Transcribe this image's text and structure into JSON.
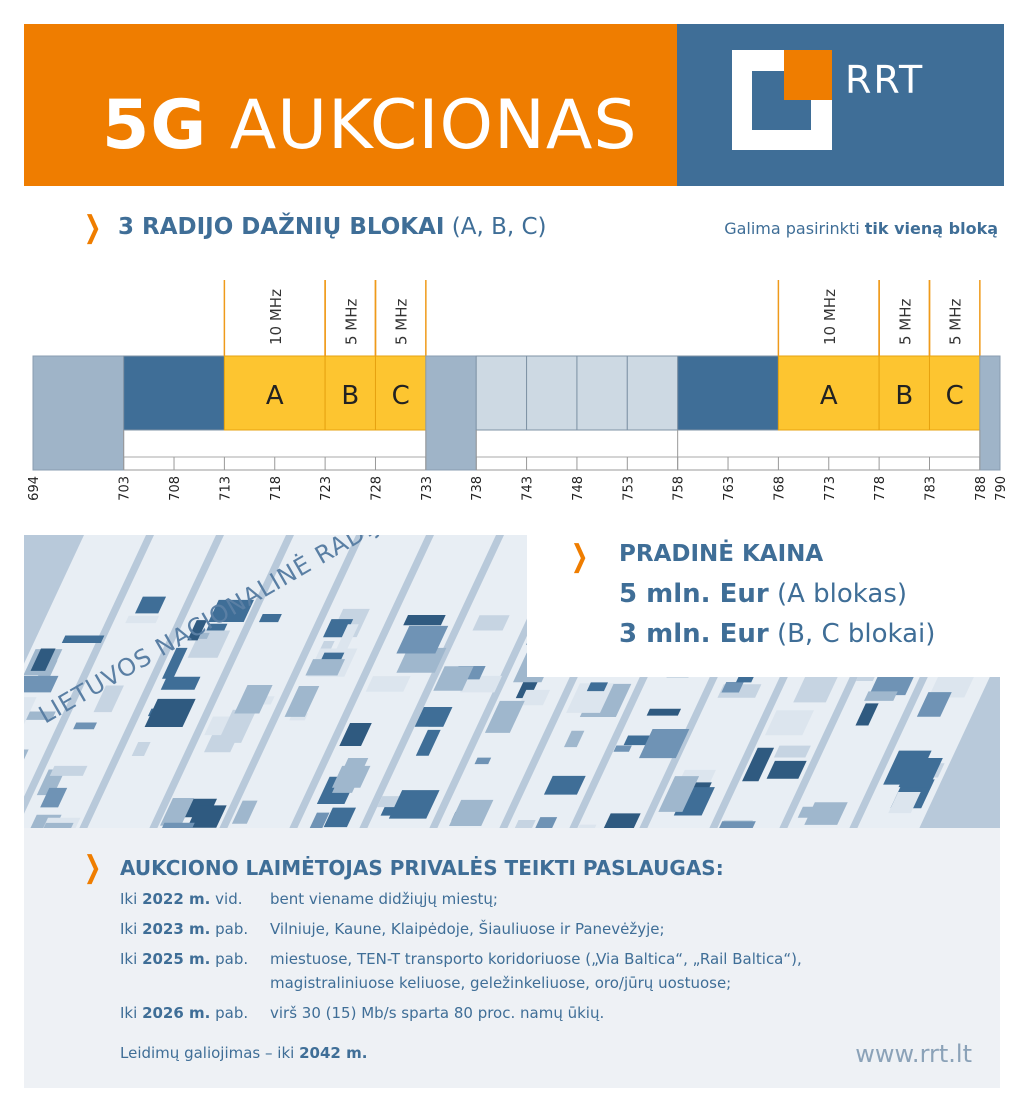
{
  "header": {
    "title_bold": "5G",
    "title_rest": "AUKCIONAS",
    "logo_text": "RRT"
  },
  "colors": {
    "orange": "#ef7d00",
    "blue": "#3f6e97",
    "yellow": "#fdc530",
    "grey_blue": "#9fb4c8",
    "light": "#cdd9e3"
  },
  "blocks_section": {
    "title_bold": "3 RADIJO DAŽNIŲ BLOKAI",
    "title_rest": "(A, B, C)",
    "note_prefix": "Galima pasirinkti",
    "note_bold": "tik vieną bloką"
  },
  "chart_data": {
    "type": "band-plan",
    "unit": "MHz",
    "range": [
      694,
      790
    ],
    "ticks": [
      694,
      703,
      708,
      713,
      718,
      723,
      728,
      733,
      738,
      743,
      748,
      753,
      758,
      763,
      768,
      773,
      778,
      783,
      788,
      790
    ],
    "segments": [
      {
        "start": 694,
        "end": 703,
        "kind": "guard"
      },
      {
        "start": 703,
        "end": 713,
        "kind": "assigned"
      },
      {
        "start": 713,
        "end": 723,
        "kind": "block",
        "label": "A",
        "width_label": "10 MHz"
      },
      {
        "start": 723,
        "end": 728,
        "kind": "block",
        "label": "B",
        "width_label": "5 MHz"
      },
      {
        "start": 728,
        "end": 733,
        "kind": "block",
        "label": "C",
        "width_label": "5 MHz"
      },
      {
        "start": 733,
        "end": 738,
        "kind": "guard"
      },
      {
        "start": 738,
        "end": 743,
        "kind": "gap"
      },
      {
        "start": 743,
        "end": 748,
        "kind": "gap"
      },
      {
        "start": 748,
        "end": 753,
        "kind": "gap"
      },
      {
        "start": 753,
        "end": 758,
        "kind": "gap"
      },
      {
        "start": 758,
        "end": 768,
        "kind": "assigned"
      },
      {
        "start": 768,
        "end": 778,
        "kind": "block",
        "label": "A",
        "width_label": "10 MHz"
      },
      {
        "start": 778,
        "end": 783,
        "kind": "block",
        "label": "B",
        "width_label": "5 MHz"
      },
      {
        "start": 783,
        "end": 788,
        "kind": "block",
        "label": "C",
        "width_label": "5 MHz"
      },
      {
        "start": 788,
        "end": 790,
        "kind": "guard"
      }
    ]
  },
  "photo": {
    "title": "LIETUVOS NACIONALINĖ RADIJO DAŽNI"
  },
  "price": {
    "title": "PRADINĖ KAINA",
    "lines": [
      {
        "bold": "5 mln. Eur",
        "rest": "(A blokas)"
      },
      {
        "bold": "3 mln. Eur",
        "rest": "(B, C blokai)"
      }
    ]
  },
  "obligations": {
    "title": "AUKCIONO LAIMĖTOJAS PRIVALĖS TEIKTI PASLAUGAS:",
    "rows": [
      {
        "pre": "Iki",
        "year": "2022 m.",
        "post": "vid.",
        "text": "bent viename didžiųjų miestų;"
      },
      {
        "pre": "Iki",
        "year": "2023 m.",
        "post": "pab.",
        "text": "Vilniuje, Kaune, Klaipėdoje, Šiauliuose ir Panevėžyje;"
      },
      {
        "pre": "Iki",
        "year": "2025 m.",
        "post": "pab.",
        "text": "miestuose, TEN-T transporto koridoriuose („Via Baltica“, „Rail Baltica“),",
        "text2": "magistraliniuose keliuose, geležinkeliuose, oro/jūrų uostuose;"
      },
      {
        "pre": "Iki",
        "year": "2026 m.",
        "post": "pab.",
        "text": "virš 30 (15) Mb/s sparta 80 proc. namų ūkių."
      }
    ],
    "validity_prefix": "Leidimų galiojimas – iki",
    "validity_bold": "2042 m.",
    "website": "www.rrt.lt"
  }
}
